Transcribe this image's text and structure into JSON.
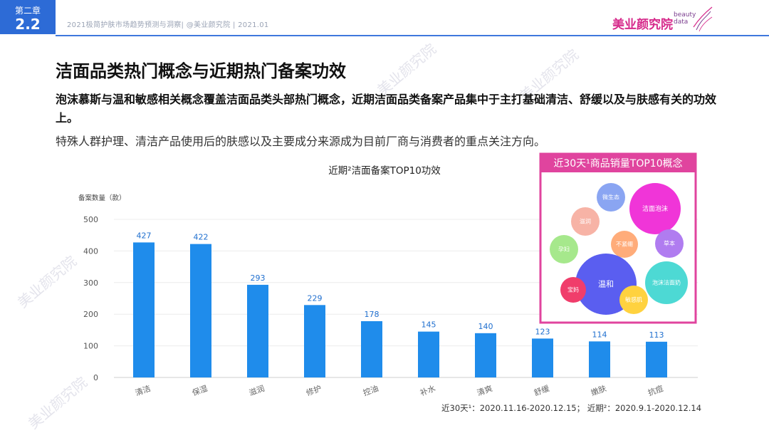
{
  "chapter": {
    "label": "第二章",
    "number": "2.2"
  },
  "header": {
    "subtitle": "2021极简护肤市场趋势预测与洞察| @美业颜究院 | 2021.01"
  },
  "brand": {
    "name_cn": "美业颜究院",
    "name_en_1": "beauty",
    "name_en_2": "data",
    "color": "#d62a8b"
  },
  "page": {
    "title": "洁面品类热门概念与近期热门备案功效",
    "summary_bold": "泡沫慕斯与温和敏感相关概念覆盖洁面品类头部热门概念，近期洁面品类备案产品集中于主打基础清洁、舒缓以及与肤感有关的功效上。",
    "summary_normal": "特殊人群护理、清洁产品使用后的肤感以及主要成分来源成为目前厂商与消费者的重点关注方向。"
  },
  "chart_data": [
    {
      "type": "bar",
      "title": "近期²洁面备案TOP10功效",
      "ylabel": "备案数量（款）",
      "categories": [
        "清洁",
        "保湿",
        "滋润",
        "修护",
        "控油",
        "补水",
        "清爽",
        "舒缓",
        "嫩肤",
        "抗痘"
      ],
      "values": [
        427,
        422,
        293,
        229,
        178,
        145,
        140,
        123,
        114,
        113
      ],
      "yticks": [
        0,
        100,
        200,
        300,
        400,
        500
      ],
      "ylim": [
        0,
        500
      ],
      "grid": true,
      "bar_color": "#1f8ceb"
    },
    {
      "type": "bubble",
      "title": "近30天¹商品销量TOP10概念",
      "border_color": "#e0449e",
      "header_color": "#e0449e",
      "items": [
        {
          "label": "微生态",
          "color": "#8aa5f2"
        },
        {
          "label": "洁面泡沫",
          "color": "#f035d8"
        },
        {
          "label": "孕妇",
          "color": "#a6e88c"
        },
        {
          "label": "滋润",
          "color": "#f7b3a6"
        },
        {
          "label": "不紧绷",
          "color": "#ffac7a"
        },
        {
          "label": "草本",
          "color": "#b07cf0"
        },
        {
          "label": "温和",
          "color": "#5a5ef0"
        },
        {
          "label": "泡沫洁面奶",
          "color": "#4dd9d4"
        },
        {
          "label": "宝妈",
          "color": "#f03d6b"
        },
        {
          "label": "敏感肌",
          "color": "#ffd23f"
        }
      ]
    }
  ],
  "footnote": "近30天¹：2020.11.16-2020.12.15；   近期²：2020.9.1-2020.12.14"
}
